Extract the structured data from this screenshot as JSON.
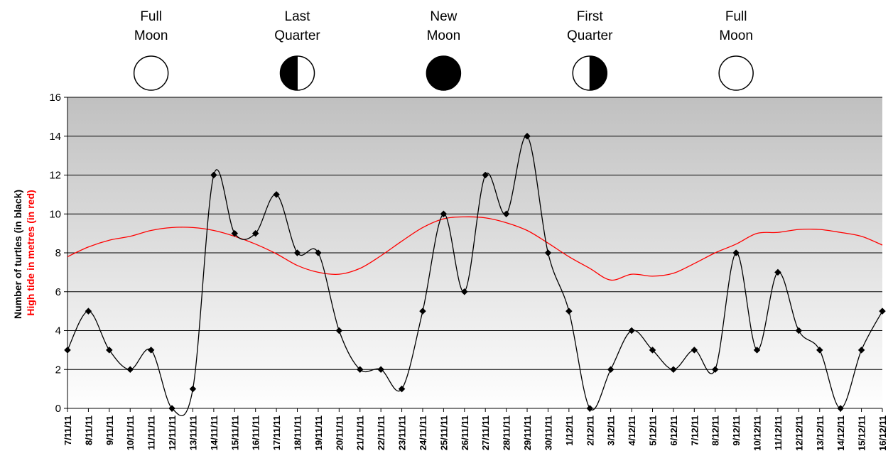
{
  "chart_data": {
    "type": "line",
    "categories": [
      "7/11/11",
      "8/11/11",
      "9/11/11",
      "10/11/11",
      "11/11/11",
      "12/11/11",
      "13/11/11",
      "14/11/11",
      "15/11/11",
      "16/11/11",
      "17/11/11",
      "18/11/11",
      "19/11/11",
      "20/11/11",
      "21/11/11",
      "22/11/11",
      "23/11/11",
      "24/11/11",
      "25/11/11",
      "26/11/11",
      "27/11/11",
      "28/11/11",
      "29/11/11",
      "30/11/11",
      "1/12/11",
      "2/12/11",
      "3/12/11",
      "4/12/11",
      "5/12/11",
      "6/12/11",
      "7/12/11",
      "8/12/11",
      "9/12/11",
      "10/12/11",
      "11/12/11",
      "12/12/11",
      "13/12/11",
      "14/12/11",
      "15/12/11",
      "16/12/11"
    ],
    "series": [
      {
        "name": "Number of turtles (in black)",
        "color": "#000000",
        "marker": "diamond",
        "values": [
          3,
          5,
          3,
          2,
          3,
          0,
          1,
          12,
          9,
          9,
          11,
          8,
          8,
          4,
          2,
          2,
          1,
          5,
          10,
          6,
          12,
          10,
          14,
          8,
          5,
          0,
          2,
          4,
          3,
          2,
          3,
          2,
          8,
          3,
          7,
          4,
          3,
          0,
          3,
          5
        ]
      },
      {
        "name": "High tide in metres (in red)",
        "color": "#ff0000",
        "marker": "none",
        "values": [
          7.8,
          8.3,
          8.65,
          8.85,
          9.15,
          9.3,
          9.3,
          9.15,
          8.85,
          8.45,
          7.95,
          7.35,
          7.0,
          6.9,
          7.2,
          7.85,
          8.6,
          9.3,
          9.75,
          9.85,
          9.8,
          9.55,
          9.15,
          8.5,
          7.8,
          7.2,
          6.6,
          6.9,
          6.8,
          6.95,
          7.45,
          8.0,
          8.45,
          9.0,
          9.05,
          9.2,
          9.2,
          9.05,
          8.85,
          8.4
        ]
      }
    ],
    "ylabel_line1": "Number of turtles (in black)",
    "ylabel_line2": "High tide in metres (in red)",
    "ylim": [
      0,
      16
    ],
    "yticks": [
      0,
      2,
      4,
      6,
      8,
      10,
      12,
      14,
      16
    ],
    "grid": "horizontal",
    "moon_phases": [
      {
        "line1": "Full",
        "line2": "Moon",
        "phase": "full",
        "category": "11/11/11"
      },
      {
        "line1": "Last",
        "line2": "Quarter",
        "phase": "last-quarter",
        "category": "18/11/11"
      },
      {
        "line1": "New",
        "line2": "Moon",
        "phase": "new",
        "category": "25/11/11"
      },
      {
        "line1": "First",
        "line2": "Quarter",
        "phase": "first-quarter",
        "category": "2/12/11"
      },
      {
        "line1": "Full",
        "line2": "Moon",
        "phase": "full",
        "category": "9/12/11"
      }
    ],
    "colors": {
      "plot_bg_top": "#c0c0c0",
      "plot_bg_bottom": "#ffffff",
      "gridline": "#000000",
      "ylabel_line1_color": "#000000",
      "ylabel_line2_color": "#ff0000"
    }
  }
}
